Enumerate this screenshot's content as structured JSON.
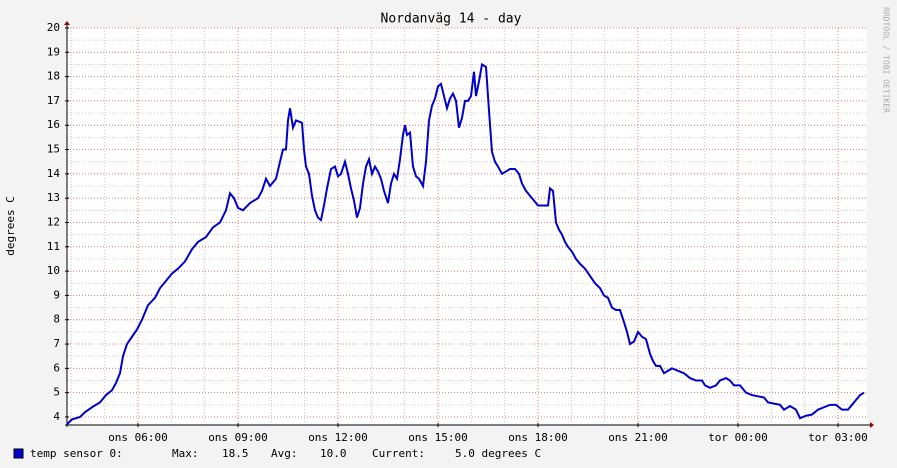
{
  "chart_data": {
    "type": "line",
    "title": "Nordanväg 14 - day",
    "y_label": "degrees C",
    "watermark": "RRDTOOL / TOBI OETIKER",
    "grid": true,
    "xlim": [
      3.87,
      27.87
    ],
    "ylim": [
      3.67,
      20
    ],
    "yticks": [
      4,
      5,
      6,
      7,
      8,
      9,
      10,
      11,
      12,
      13,
      14,
      15,
      16,
      17,
      18,
      19,
      20
    ],
    "xticks": [
      {
        "value": 6,
        "label": "ons 06:00"
      },
      {
        "value": 9,
        "label": "ons 09:00"
      },
      {
        "value": 12,
        "label": "ons 12:00"
      },
      {
        "value": 15,
        "label": "ons 15:00"
      },
      {
        "value": 18,
        "label": "ons 18:00"
      },
      {
        "value": 21,
        "label": "ons 21:00"
      },
      {
        "value": 24,
        "label": "tor 00:00"
      },
      {
        "value": 27,
        "label": "tor 03:00"
      }
    ],
    "stats": [
      {
        "label": "Max:",
        "value": "18.5"
      },
      {
        "label": "Avg:",
        "value": "10.0"
      },
      {
        "label": "Current:",
        "value": "5.0 degrees C"
      }
    ],
    "x": [
      3.87,
      4.02,
      4.26,
      4.41,
      4.62,
      4.86,
      5.04,
      5.22,
      5.34,
      5.46,
      5.55,
      5.67,
      5.82,
      5.97,
      6.12,
      6.3,
      6.51,
      6.66,
      6.84,
      7.02,
      7.2,
      7.41,
      7.62,
      7.8,
      8.04,
      8.25,
      8.46,
      8.64,
      8.76,
      8.88,
      9.0,
      9.15,
      9.36,
      9.6,
      9.72,
      9.84,
      9.96,
      10.14,
      10.26,
      10.35,
      10.44,
      10.5,
      10.56,
      10.65,
      10.74,
      10.92,
      10.98,
      11.04,
      11.13,
      11.22,
      11.31,
      11.4,
      11.49,
      11.58,
      11.67,
      11.79,
      11.91,
      12.0,
      12.09,
      12.21,
      12.3,
      12.39,
      12.48,
      12.57,
      12.66,
      12.75,
      12.84,
      12.93,
      13.02,
      13.11,
      13.2,
      13.29,
      13.38,
      13.5,
      13.59,
      13.68,
      13.77,
      13.86,
      13.95,
      14.01,
      14.07,
      14.16,
      14.25,
      14.34,
      14.43,
      14.55,
      14.64,
      14.73,
      14.82,
      14.91,
      15.0,
      15.09,
      15.18,
      15.27,
      15.36,
      15.45,
      15.54,
      15.63,
      15.72,
      15.81,
      15.9,
      15.99,
      16.08,
      16.14,
      16.23,
      16.32,
      16.44,
      16.53,
      16.62,
      16.71,
      16.8,
      16.92,
      17.04,
      17.16,
      17.31,
      17.43,
      17.52,
      17.64,
      17.76,
      17.88,
      18.0,
      18.18,
      18.3,
      18.36,
      18.45,
      18.54,
      18.63,
      18.72,
      18.81,
      18.9,
      19.02,
      19.14,
      19.26,
      19.41,
      19.56,
      19.71,
      19.86,
      19.98,
      20.1,
      20.22,
      20.34,
      20.46,
      20.58,
      20.67,
      20.76,
      20.88,
      21.0,
      21.12,
      21.24,
      21.36,
      21.45,
      21.54,
      21.66,
      21.78,
      21.9,
      22.02,
      22.2,
      22.38,
      22.56,
      22.74,
      22.92,
      23.01,
      23.16,
      23.34,
      23.46,
      23.64,
      23.76,
      23.88,
      24.06,
      24.24,
      24.42,
      24.6,
      24.78,
      24.9,
      25.08,
      25.26,
      25.38,
      25.56,
      25.74,
      25.86,
      26.04,
      26.22,
      26.4,
      26.58,
      26.76,
      26.94,
      27.12,
      27.3,
      27.42,
      27.54,
      27.66,
      27.78
    ],
    "series": [
      {
        "name": "temp sensor 0:",
        "color": "#0000cc",
        "values": [
          3.7,
          3.9,
          4.0,
          4.2,
          4.4,
          4.6,
          4.9,
          5.1,
          5.4,
          5.8,
          6.5,
          7.0,
          7.3,
          7.6,
          8.0,
          8.6,
          8.9,
          9.3,
          9.6,
          9.9,
          10.1,
          10.4,
          10.9,
          11.2,
          11.4,
          11.8,
          12.0,
          12.5,
          13.2,
          13.0,
          12.6,
          12.5,
          12.8,
          13.0,
          13.3,
          13.8,
          13.5,
          13.8,
          14.5,
          15.0,
          15.0,
          16.2,
          16.7,
          15.9,
          16.2,
          16.1,
          15.0,
          14.3,
          14.0,
          13.1,
          12.5,
          12.2,
          12.1,
          12.7,
          13.4,
          14.2,
          14.3,
          13.9,
          14.0,
          14.5,
          14.0,
          13.4,
          12.9,
          12.2,
          12.6,
          13.6,
          14.3,
          14.6,
          14.0,
          14.3,
          14.1,
          13.8,
          13.3,
          12.8,
          13.6,
          14.0,
          13.8,
          14.6,
          15.6,
          16.0,
          15.6,
          15.7,
          14.3,
          13.9,
          13.8,
          13.5,
          14.5,
          16.2,
          16.8,
          17.1,
          17.6,
          17.7,
          17.2,
          16.7,
          17.1,
          17.3,
          17.0,
          15.9,
          16.3,
          17.0,
          17.0,
          17.2,
          18.2,
          17.2,
          17.8,
          18.5,
          18.4,
          16.6,
          14.9,
          14.5,
          14.3,
          14.0,
          14.1,
          14.2,
          14.2,
          14.0,
          13.6,
          13.3,
          13.1,
          12.9,
          12.7,
          12.7,
          12.7,
          13.4,
          13.3,
          12.0,
          11.7,
          11.5,
          11.2,
          11.0,
          10.8,
          10.5,
          10.3,
          10.1,
          9.8,
          9.5,
          9.3,
          9.0,
          8.9,
          8.5,
          8.4,
          8.4,
          7.9,
          7.5,
          7.0,
          7.1,
          7.5,
          7.3,
          7.2,
          6.6,
          6.3,
          6.1,
          6.1,
          5.8,
          5.9,
          6.0,
          5.9,
          5.8,
          5.6,
          5.5,
          5.5,
          5.3,
          5.2,
          5.3,
          5.5,
          5.6,
          5.5,
          5.3,
          5.3,
          5.0,
          4.9,
          4.85,
          4.8,
          4.6,
          4.55,
          4.5,
          4.3,
          4.45,
          4.3,
          3.95,
          4.05,
          4.1,
          4.3,
          4.4,
          4.5,
          4.5,
          4.3,
          4.3,
          4.5,
          4.7,
          4.9,
          5.0
        ]
      }
    ]
  }
}
